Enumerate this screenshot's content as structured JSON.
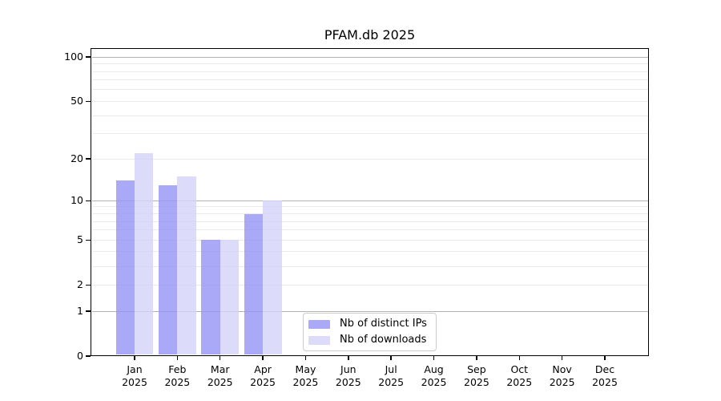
{
  "chart_data": {
    "type": "bar",
    "title": "PFAM.db 2025",
    "x_categories": [
      {
        "month": "Jan",
        "year": "2025"
      },
      {
        "month": "Feb",
        "year": "2025"
      },
      {
        "month": "Mar",
        "year": "2025"
      },
      {
        "month": "Apr",
        "year": "2025"
      },
      {
        "month": "May",
        "year": "2025"
      },
      {
        "month": "Jun",
        "year": "2025"
      },
      {
        "month": "Jul",
        "year": "2025"
      },
      {
        "month": "Aug",
        "year": "2025"
      },
      {
        "month": "Sep",
        "year": "2025"
      },
      {
        "month": "Oct",
        "year": "2025"
      },
      {
        "month": "Nov",
        "year": "2025"
      },
      {
        "month": "Dec",
        "year": "2025"
      }
    ],
    "series": [
      {
        "name": "Nb of distinct IPs",
        "color": "#9393f5",
        "opacity": 0.8,
        "values": [
          14,
          13,
          5,
          8,
          0,
          0,
          0,
          0,
          0,
          0,
          0,
          0
        ]
      },
      {
        "name": "Nb of downloads",
        "color": "#d3d3f9",
        "opacity": 0.8,
        "values": [
          22,
          15,
          5,
          10,
          0,
          0,
          0,
          0,
          0,
          0,
          0,
          0
        ]
      }
    ],
    "y_axis": {
      "scale": "log1p",
      "ticks": [
        0,
        1,
        2,
        5,
        10,
        20,
        50,
        100
      ],
      "minor_ticks": [
        3,
        4,
        6,
        7,
        8,
        9,
        30,
        40,
        60,
        70,
        80,
        90
      ],
      "decade_ticks": [
        1,
        10,
        100
      ],
      "top_value": 115
    },
    "grid": {
      "orientation": "horizontal",
      "major_color": "#b2b2b2",
      "minor_color": "#e9e9e9"
    },
    "legend": {
      "position": "lower-center",
      "entries": [
        "Nb of distinct IPs",
        "Nb of downloads"
      ]
    },
    "axes": {
      "spine_color": "#000000",
      "text_color": "#000000",
      "background": "#ffffff"
    }
  }
}
